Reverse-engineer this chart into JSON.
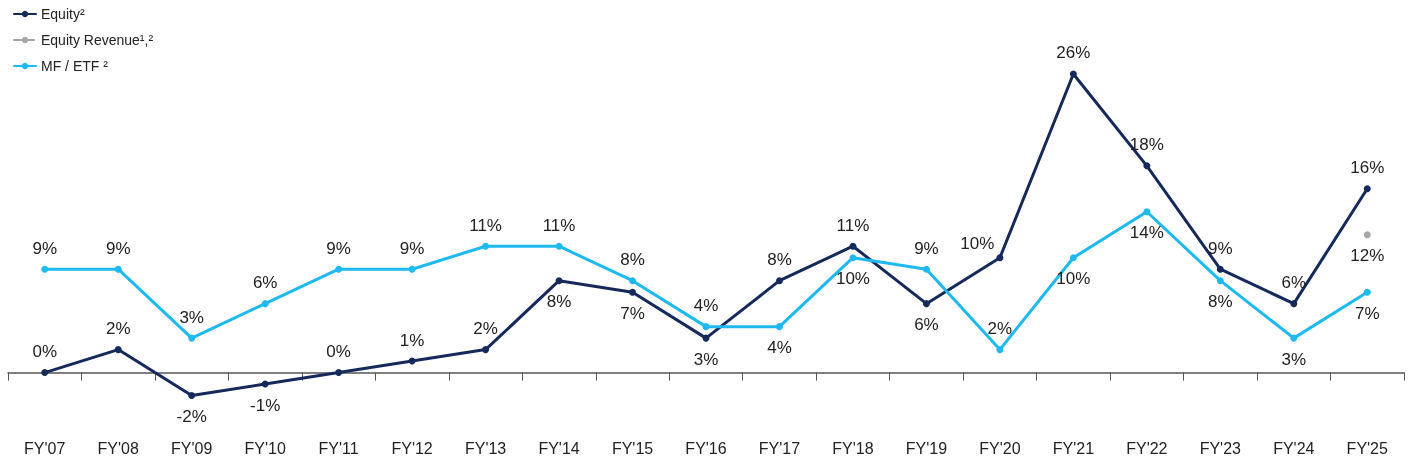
{
  "chart_data": {
    "type": "line",
    "categories": [
      "FY'07",
      "FY'08",
      "FY'09",
      "FY'10",
      "FY'11",
      "FY'12",
      "FY'13",
      "FY'14",
      "FY'15",
      "FY'16",
      "FY'17",
      "FY'18",
      "FY'19",
      "FY'20",
      "FY'21",
      "FY'22",
      "FY'23",
      "FY'24",
      "FY'25"
    ],
    "series": [
      {
        "name": "Equity²",
        "color": "#15295a",
        "line_style": "solid",
        "values": [
          0,
          2,
          -2,
          -1,
          0,
          1,
          2,
          8,
          7,
          3,
          8,
          11,
          6,
          10,
          26,
          18,
          9,
          6,
          16
        ],
        "value_labels": [
          "0%",
          "2%",
          "-2%",
          "-1%",
          "0%",
          "1%",
          "2%",
          "8%",
          "7%",
          "3%",
          "8%",
          "11%",
          "6%",
          "10%",
          "26%",
          "18%",
          "9%",
          "6%",
          "16%"
        ]
      },
      {
        "name": "Equity Revenue¹,²",
        "color": "#a6a6a6",
        "line_style": "dashed",
        "values": [
          null,
          null,
          null,
          null,
          null,
          null,
          null,
          null,
          null,
          null,
          null,
          null,
          null,
          null,
          null,
          null,
          null,
          null,
          12
        ],
        "value_labels": [
          null,
          null,
          null,
          null,
          null,
          null,
          null,
          null,
          null,
          null,
          null,
          null,
          null,
          null,
          null,
          null,
          null,
          null,
          "12%"
        ]
      },
      {
        "name": "MF / ETF ²",
        "color": "#1eb9f0",
        "line_style": "solid",
        "values": [
          9,
          9,
          3,
          6,
          9,
          9,
          11,
          11,
          8,
          4,
          4,
          10,
          9,
          2,
          10,
          14,
          8,
          3,
          7
        ],
        "value_labels": [
          "9%",
          "9%",
          "3%",
          "6%",
          "9%",
          "9%",
          "11%",
          "11%",
          "8%",
          "4%",
          "4%",
          "10%",
          "9%",
          "2%",
          "10%",
          "14%",
          "8%",
          "3%",
          "7%"
        ]
      }
    ],
    "marker": "circle",
    "legend": "top left",
    "grid": false
  }
}
